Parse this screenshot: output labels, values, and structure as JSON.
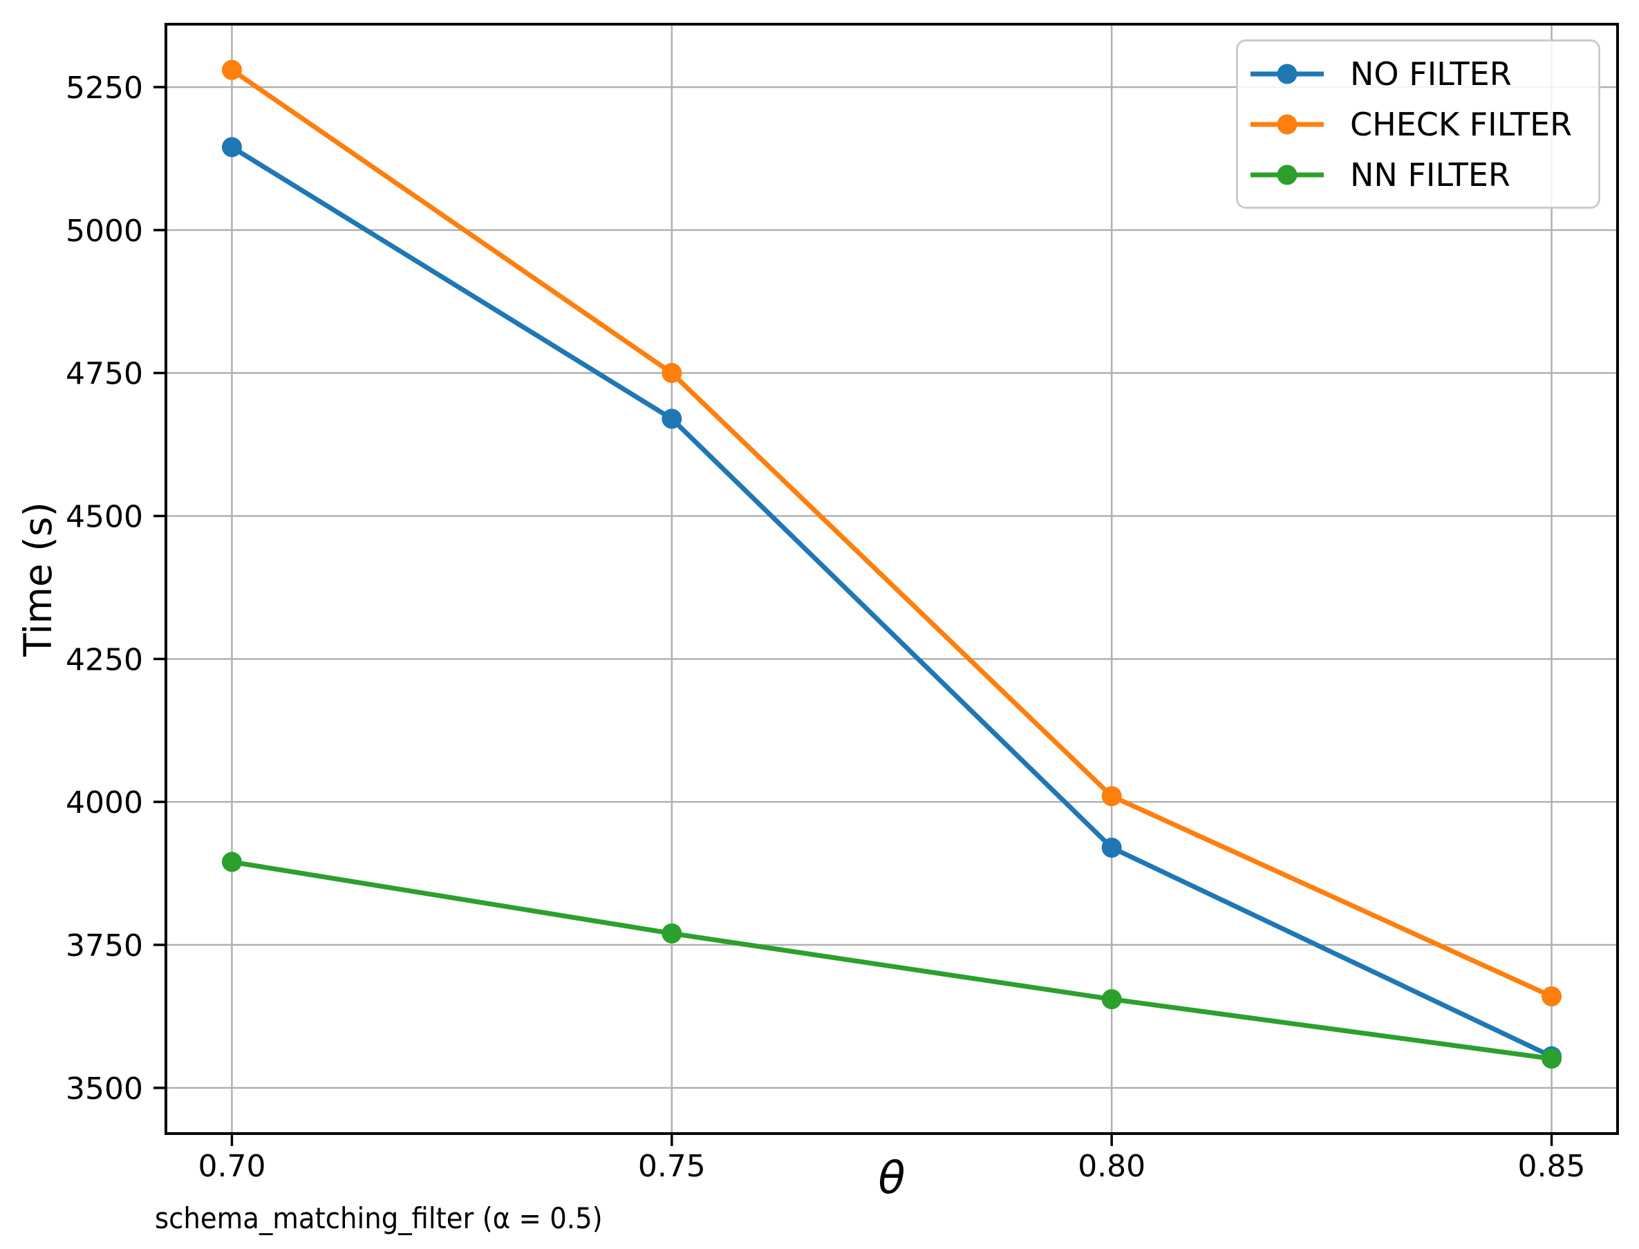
{
  "chart_data": {
    "type": "line",
    "title": "",
    "xlabel": "θ",
    "ylabel": "Time (s)",
    "caption": "schema_matching_filter (α = 0.5)",
    "x": [
      0.7,
      0.75,
      0.8,
      0.85
    ],
    "x_tick_labels": [
      "0.70",
      "0.75",
      "0.80",
      "0.85"
    ],
    "y_ticks": [
      3500,
      3750,
      4000,
      4250,
      4500,
      4750,
      5000,
      5250
    ],
    "xlim": [
      0.6925,
      0.8575
    ],
    "ylim": [
      3420,
      5360
    ],
    "grid": true,
    "grid_color": "#b0b0b0",
    "axis_color": "#000000",
    "legend_position": "upper right",
    "series": [
      {
        "name": "NO FILTER",
        "color": "#1f77b4",
        "values": [
          5145,
          4670,
          3920,
          3555
        ]
      },
      {
        "name": "CHECK FILTER",
        "color": "#ff7f0e",
        "values": [
          5280,
          4750,
          4010,
          3660
        ]
      },
      {
        "name": "NN FILTER",
        "color": "#2ca02c",
        "values": [
          3895,
          3770,
          3655,
          3551
        ]
      }
    ]
  }
}
